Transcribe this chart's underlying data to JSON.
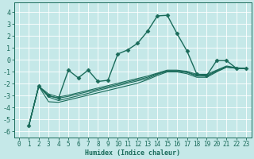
{
  "xlabel": "Humidex (Indice chaleur)",
  "xlim": [
    -0.5,
    23.5
  ],
  "ylim": [
    -6.5,
    4.8
  ],
  "yticks": [
    -6,
    -5,
    -4,
    -3,
    -2,
    -1,
    0,
    1,
    2,
    3,
    4
  ],
  "xticks": [
    0,
    1,
    2,
    3,
    4,
    5,
    6,
    7,
    8,
    9,
    10,
    11,
    12,
    13,
    14,
    15,
    16,
    17,
    18,
    19,
    20,
    21,
    22,
    23
  ],
  "background_color": "#c5e8e8",
  "line_color": "#1a6b5a",
  "grid_color": "#ffffff",
  "series": [
    {
      "x": [
        1,
        2,
        3,
        4,
        5,
        6,
        7,
        8,
        9,
        10,
        11,
        12,
        13,
        14,
        15,
        16,
        17,
        18,
        19,
        20,
        21,
        22,
        23
      ],
      "y": [
        -5.5,
        -2.2,
        -3.0,
        -3.2,
        -0.85,
        -1.5,
        -0.85,
        -1.8,
        -1.7,
        0.5,
        0.85,
        1.4,
        2.4,
        3.7,
        3.75,
        2.2,
        0.75,
        -1.2,
        -1.3,
        -0.05,
        -0.05,
        -0.7,
        -0.7
      ],
      "marker": "D",
      "markersize": 2.5,
      "linewidth": 1.0
    },
    {
      "x": [
        1,
        2,
        3,
        4,
        5,
        6,
        7,
        8,
        9,
        10,
        11,
        12,
        13,
        14,
        15,
        16,
        17,
        18,
        19,
        20,
        21,
        22,
        23
      ],
      "y": [
        -5.5,
        -2.2,
        -2.85,
        -3.1,
        -2.95,
        -2.75,
        -2.55,
        -2.35,
        -2.15,
        -1.95,
        -1.75,
        -1.55,
        -1.35,
        -1.1,
        -0.85,
        -0.85,
        -0.95,
        -1.2,
        -1.2,
        -0.85,
        -0.5,
        -0.65,
        -0.7
      ],
      "marker": null,
      "markersize": 0,
      "linewidth": 0.8
    },
    {
      "x": [
        1,
        2,
        3,
        4,
        5,
        6,
        7,
        8,
        9,
        10,
        11,
        12,
        13,
        14,
        15,
        16,
        17,
        18,
        19,
        20,
        21,
        22,
        23
      ],
      "y": [
        -5.5,
        -2.2,
        -3.0,
        -3.2,
        -3.05,
        -2.85,
        -2.65,
        -2.45,
        -2.25,
        -2.05,
        -1.85,
        -1.65,
        -1.45,
        -1.15,
        -0.9,
        -0.9,
        -1.0,
        -1.3,
        -1.3,
        -0.9,
        -0.55,
        -0.7,
        -0.7
      ],
      "marker": null,
      "markersize": 0,
      "linewidth": 0.8
    },
    {
      "x": [
        1,
        2,
        3,
        4,
        5,
        6,
        7,
        8,
        9,
        10,
        11,
        12,
        13,
        14,
        15,
        16,
        17,
        18,
        19,
        20,
        21,
        22,
        23
      ],
      "y": [
        -5.5,
        -2.2,
        -3.1,
        -3.4,
        -3.2,
        -3.0,
        -2.8,
        -2.55,
        -2.35,
        -2.15,
        -1.95,
        -1.75,
        -1.55,
        -1.2,
        -0.95,
        -0.95,
        -1.05,
        -1.35,
        -1.35,
        -0.95,
        -0.6,
        -0.7,
        -0.7
      ],
      "marker": null,
      "markersize": 0,
      "linewidth": 0.8
    },
    {
      "x": [
        1,
        2,
        3,
        4,
        5,
        6,
        7,
        8,
        9,
        10,
        11,
        12,
        13,
        14,
        15,
        16,
        17,
        18,
        19,
        20,
        21,
        22,
        23
      ],
      "y": [
        -5.5,
        -2.2,
        -3.5,
        -3.55,
        -3.35,
        -3.15,
        -2.95,
        -2.75,
        -2.55,
        -2.35,
        -2.15,
        -1.95,
        -1.65,
        -1.3,
        -1.0,
        -1.0,
        -1.15,
        -1.45,
        -1.45,
        -1.0,
        -0.6,
        -0.7,
        -0.7
      ],
      "marker": null,
      "markersize": 0,
      "linewidth": 0.8
    }
  ]
}
